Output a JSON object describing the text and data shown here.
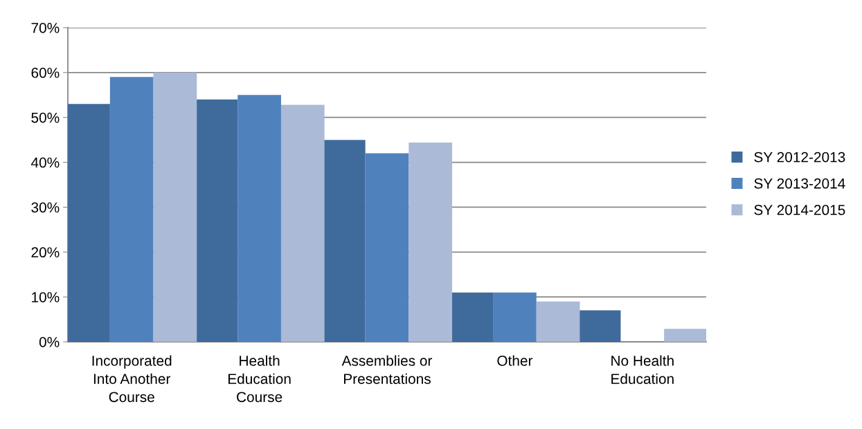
{
  "chart_data": {
    "type": "bar",
    "categories": [
      "Incorporated\nInto Another\nCourse",
      "Health\nEducation\nCourse",
      "Assemblies or\nPresentations",
      "Other",
      "No Health\nEducation"
    ],
    "series": [
      {
        "name": "SY 2012-2013",
        "color": "#3f6a9c",
        "values": [
          53,
          54,
          45,
          11,
          7
        ]
      },
      {
        "name": "SY 2013-2014",
        "color": "#4f81bd",
        "values": [
          59,
          55,
          42,
          11,
          0
        ]
      },
      {
        "name": "SY 2014-2015",
        "color": "#aabad7",
        "values": [
          60,
          52.8,
          44.4,
          9,
          2.9
        ]
      }
    ],
    "ylim": [
      0,
      70
    ],
    "yticks": [
      {
        "value": 0,
        "label": "0%"
      },
      {
        "value": 10,
        "label": "10%"
      },
      {
        "value": 20,
        "label": "20%"
      },
      {
        "value": 30,
        "label": "30%"
      },
      {
        "value": 40,
        "label": "40%"
      },
      {
        "value": 50,
        "label": "50%"
      },
      {
        "value": 60,
        "label": "60%"
      },
      {
        "value": 70,
        "label": "70%"
      }
    ],
    "grid": "y",
    "legend": "right"
  }
}
